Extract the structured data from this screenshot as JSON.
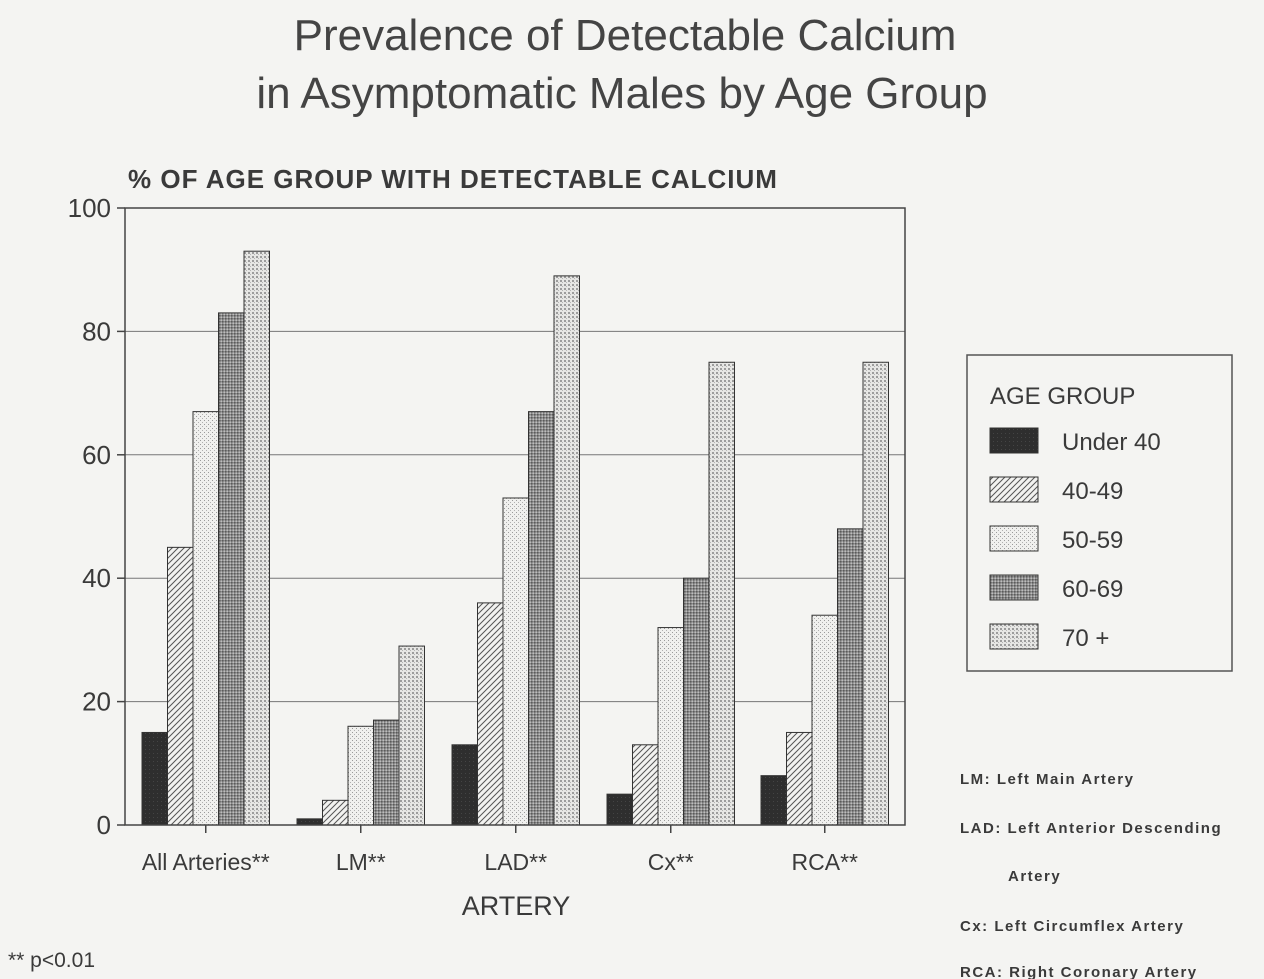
{
  "chart_data": {
    "type": "bar",
    "title": [
      "Prevalence of Detectable Calcium",
      "in Asymptomatic Males by Age Group"
    ],
    "ylabel": "% OF AGE GROUP WITH DETECTABLE CALCIUM",
    "xlabel": "ARTERY",
    "ylim": [
      0,
      100
    ],
    "yticks": [
      0,
      20,
      40,
      60,
      80,
      100
    ],
    "grid": true,
    "legend_position": "right",
    "legend_title": "AGE GROUP",
    "categories": [
      "All Arteries**",
      "LM**",
      "LAD**",
      "Cx**",
      "RCA**"
    ],
    "series": [
      {
        "name": "Under 40",
        "values": [
          15,
          1,
          13,
          5,
          8
        ],
        "pattern": "solid-dark"
      },
      {
        "name": "40-49",
        "values": [
          45,
          4,
          36,
          13,
          15
        ],
        "pattern": "diagonal-hatch"
      },
      {
        "name": "50-59",
        "values": [
          67,
          16,
          53,
          32,
          34
        ],
        "pattern": "light-dots"
      },
      {
        "name": "60-69",
        "values": [
          83,
          17,
          67,
          40,
          48
        ],
        "pattern": "dense-dots"
      },
      {
        "name": "70 +",
        "values": [
          93,
          29,
          89,
          75,
          75
        ],
        "pattern": "fine-grid"
      }
    ],
    "notes": [
      "LM: Left Main Artery",
      "LAD: Left Anterior Descending",
      "Artery",
      "Cx: Left Circumflex Artery",
      "RCA: Right Coronary Artery"
    ],
    "footnote": "** p<0.01"
  }
}
